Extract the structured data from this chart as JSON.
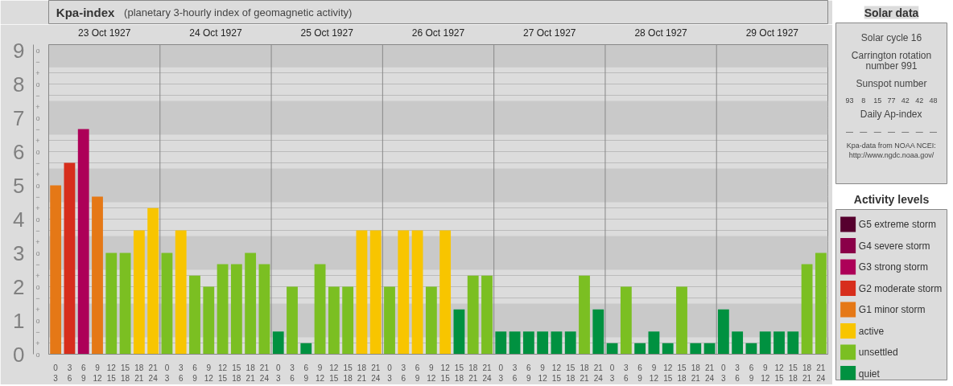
{
  "chart_data": [
    {
      "type": "bar",
      "title": "Kpa-index",
      "subtitle": "(planetary 3-hourly index of geomagnetic activity)",
      "annotations": [
        "23 Oct 1927",
        "24 Oct 1927",
        "25 Oct 1927",
        "26 Oct 1927",
        "27 Oct 1927",
        "28 Oct 1927",
        "29 Oct 1927",
        "o",
        "+",
        "−",
        "o",
        "+",
        "−",
        "o",
        "+",
        "−",
        "o",
        "+",
        "−",
        "o",
        "+",
        "−",
        "o",
        "+",
        "−",
        "o",
        "+",
        "−",
        "o",
        "+",
        "−",
        "o",
        "+",
        "−",
        "o"
      ],
      "categories": [
        "0\n3",
        "3\n6",
        "6\n9",
        "9\n12",
        "12\n15",
        "15\n18",
        "18\n21",
        "21\n24",
        "0\n3",
        "3\n6",
        "6\n9",
        "9\n12",
        "12\n15",
        "15\n18",
        "18\n21",
        "21\n24",
        "0\n3",
        "3\n6",
        "6\n9",
        "9\n12",
        "12\n15",
        "15\n18",
        "18\n21",
        "21\n24",
        "0\n3",
        "3\n6",
        "6\n9",
        "9\n12",
        "12\n15",
        "15\n18",
        "18\n21",
        "21\n24",
        "0\n3",
        "3\n6",
        "6\n9",
        "9\n12",
        "12\n15",
        "15\n18",
        "18\n21",
        "21\n24",
        "0\n3",
        "3\n6",
        "6\n9",
        "9\n12",
        "12\n15",
        "15\n18",
        "18\n21",
        "21\n24",
        "0\n3",
        "3\n6",
        "6\n9",
        "9\n12",
        "12\n15",
        "15\n18",
        "18\n21",
        "21\n24"
      ],
      "legend_title": "Activity levels",
      "legend": "right",
      "series": [
        {
          "name": "G5 extreme storm",
          "color": "#56002e",
          "values": [
            null,
            null,
            null,
            null,
            null,
            null,
            null,
            null,
            null,
            null,
            null,
            null,
            null,
            null,
            null,
            null,
            null,
            null,
            null,
            null,
            null,
            null,
            null,
            null,
            null,
            null,
            null,
            null,
            null,
            null,
            null,
            null,
            null,
            null,
            null,
            null,
            null,
            null,
            null,
            null,
            null,
            null,
            null,
            null,
            null,
            null,
            null,
            null,
            null,
            null,
            null,
            null,
            null,
            null,
            null,
            null
          ]
        },
        {
          "name": "G4 severe storm",
          "color": "#8a0048",
          "values": [
            null,
            null,
            null,
            null,
            null,
            null,
            null,
            null,
            null,
            null,
            null,
            null,
            null,
            null,
            null,
            null,
            null,
            null,
            null,
            null,
            null,
            null,
            null,
            null,
            null,
            null,
            null,
            null,
            null,
            null,
            null,
            null,
            null,
            null,
            null,
            null,
            null,
            null,
            null,
            null,
            null,
            null,
            null,
            null,
            null,
            null,
            null,
            null,
            null,
            null,
            null,
            null,
            null,
            null,
            null,
            null
          ]
        },
        {
          "name": "G3 strong storm",
          "color": "#ad0058",
          "values": [
            null,
            null,
            6.67,
            null,
            null,
            null,
            null,
            null,
            null,
            null,
            null,
            null,
            null,
            null,
            null,
            null,
            null,
            null,
            null,
            null,
            null,
            null,
            null,
            null,
            null,
            null,
            null,
            null,
            null,
            null,
            null,
            null,
            null,
            null,
            null,
            null,
            null,
            null,
            null,
            null,
            null,
            null,
            null,
            null,
            null,
            null,
            null,
            null,
            null,
            null,
            null,
            null,
            null,
            null,
            null,
            null
          ]
        },
        {
          "name": "G2 moderate storm",
          "color": "#d72e1c",
          "values": [
            null,
            5.67,
            null,
            null,
            null,
            null,
            null,
            null,
            null,
            null,
            null,
            null,
            null,
            null,
            null,
            null,
            null,
            null,
            null,
            null,
            null,
            null,
            null,
            null,
            null,
            null,
            null,
            null,
            null,
            null,
            null,
            null,
            null,
            null,
            null,
            null,
            null,
            null,
            null,
            null,
            null,
            null,
            null,
            null,
            null,
            null,
            null,
            null,
            null,
            null,
            null,
            null,
            null,
            null,
            null,
            null
          ]
        },
        {
          "name": "G1 minor storm",
          "color": "#e57816",
          "values": [
            5,
            null,
            null,
            4.67,
            null,
            null,
            null,
            null,
            null,
            null,
            null,
            null,
            null,
            null,
            null,
            null,
            null,
            null,
            null,
            null,
            null,
            null,
            null,
            null,
            null,
            null,
            null,
            null,
            null,
            null,
            null,
            null,
            null,
            null,
            null,
            null,
            null,
            null,
            null,
            null,
            null,
            null,
            null,
            null,
            null,
            null,
            null,
            null,
            null,
            null,
            null,
            null,
            null,
            null,
            null,
            null
          ]
        },
        {
          "name": "active",
          "color": "#f8c500",
          "values": [
            null,
            null,
            null,
            null,
            null,
            null,
            3.67,
            4.33,
            null,
            3.67,
            null,
            null,
            null,
            null,
            null,
            null,
            null,
            null,
            null,
            null,
            null,
            null,
            3.67,
            3.67,
            null,
            3.67,
            3.67,
            null,
            3.67,
            null,
            null,
            null,
            null,
            null,
            null,
            null,
            null,
            null,
            null,
            null,
            null,
            null,
            null,
            null,
            null,
            null,
            null,
            null,
            null,
            null,
            null,
            null,
            null,
            null,
            null,
            null
          ]
        },
        {
          "name": "unsettled",
          "color": "#7bbf22",
          "values": [
            null,
            null,
            null,
            null,
            3,
            3,
            null,
            null,
            3,
            null,
            2.33,
            2,
            2.67,
            2.67,
            3,
            2.67,
            null,
            2,
            null,
            2.67,
            2,
            2,
            null,
            null,
            2,
            null,
            null,
            2,
            null,
            null,
            2.33,
            2.33,
            null,
            null,
            null,
            null,
            null,
            null,
            2.33,
            null,
            null,
            2,
            null,
            null,
            null,
            2,
            null,
            null,
            null,
            null,
            null,
            null,
            null,
            null,
            2.67,
            3
          ]
        },
        {
          "name": "quiet",
          "color": "#009140",
          "values": [
            null,
            null,
            null,
            null,
            null,
            null,
            null,
            null,
            null,
            null,
            null,
            null,
            null,
            null,
            null,
            null,
            0.67,
            null,
            0.33,
            null,
            null,
            null,
            null,
            null,
            null,
            null,
            null,
            null,
            null,
            1.33,
            null,
            null,
            0.67,
            0.67,
            0.67,
            0.67,
            0.67,
            0.67,
            null,
            1.33,
            0.33,
            null,
            0.33,
            0.67,
            0.33,
            null,
            0.33,
            0.33,
            1.33,
            0.67,
            0.33,
            0.67,
            0.67,
            0.67,
            null,
            null
          ]
        }
      ],
      "ylim": [
        0,
        9.17
      ],
      "yticks": [
        0,
        1,
        2,
        3,
        4,
        5,
        6,
        7,
        8,
        9
      ],
      "bands": [
        {
          "axis": "y",
          "from": 0.5,
          "to": 1.5,
          "color": "#c9c9c9"
        },
        {
          "axis": "y",
          "from": 2.5,
          "to": 3.5,
          "color": "#c9c9c9"
        },
        {
          "axis": "y",
          "from": 4.5,
          "to": 5.5,
          "color": "#c9c9c9"
        },
        {
          "axis": "y",
          "from": 6.5,
          "to": 7.5,
          "color": "#c9c9c9"
        },
        {
          "axis": "y",
          "from": 8.5,
          "to": 9.17,
          "color": "#c9c9c9"
        }
      ],
      "grid": "y"
    },
    {
      "type": "other",
      "title": "Solar data",
      "annotations": [
        "Solar cycle 16",
        "Carrington rotation number 991",
        "Sunspot number",
        "93   8   15   77   42   42   48",
        "Daily Ap-index",
        "—   —   —   —   —   —   —",
        "Kpa-data from NOAA NCEI:",
        "http://www.ngdc.noaa.gov/"
      ]
    }
  ]
}
